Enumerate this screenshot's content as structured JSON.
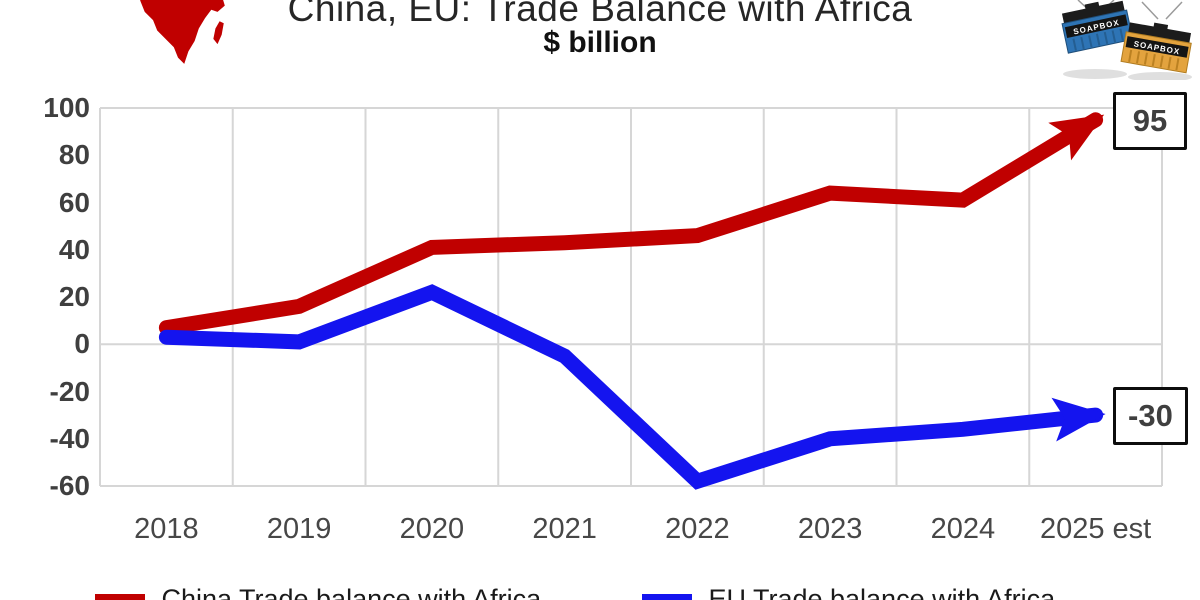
{
  "chart_data": {
    "type": "line",
    "title": "China, EU: Trade Balance with Africa",
    "subtitle": "$ billion",
    "categories": [
      "2018",
      "2019",
      "2020",
      "2021",
      "2022",
      "2023",
      "2024",
      "2025 est"
    ],
    "series": [
      {
        "name": "China Trade balance with Africa",
        "color": "#C00000",
        "values": [
          7,
          16,
          41,
          43,
          46,
          64,
          61,
          95
        ],
        "end_label": "95",
        "end_arrow": true
      },
      {
        "name": "EU Trade balance with Africa",
        "color": "#1414EF",
        "values": [
          3,
          1,
          22,
          -5,
          -58,
          -40,
          -36,
          -30
        ],
        "end_label": "-30",
        "end_arrow": true
      }
    ],
    "ylim": [
      -60,
      100
    ],
    "yticks": [
      100,
      80,
      60,
      40,
      20,
      0,
      -20,
      -40,
      -60
    ],
    "ygrid_lines": [
      100,
      0,
      -60
    ],
    "grid": "vertical-category-gridlines",
    "legend_position": "bottom",
    "colors": {
      "gridline": "#D6D6D6",
      "tick_text": "#3f3f3f",
      "title_text": "#262626"
    }
  },
  "logo": {
    "label": "SOAPBOX",
    "blue": "#2E74B5",
    "orange": "#E3A33E"
  },
  "icons": {
    "top_left": "africa-map-icon",
    "top_right": "soapbox-containers-logo"
  }
}
